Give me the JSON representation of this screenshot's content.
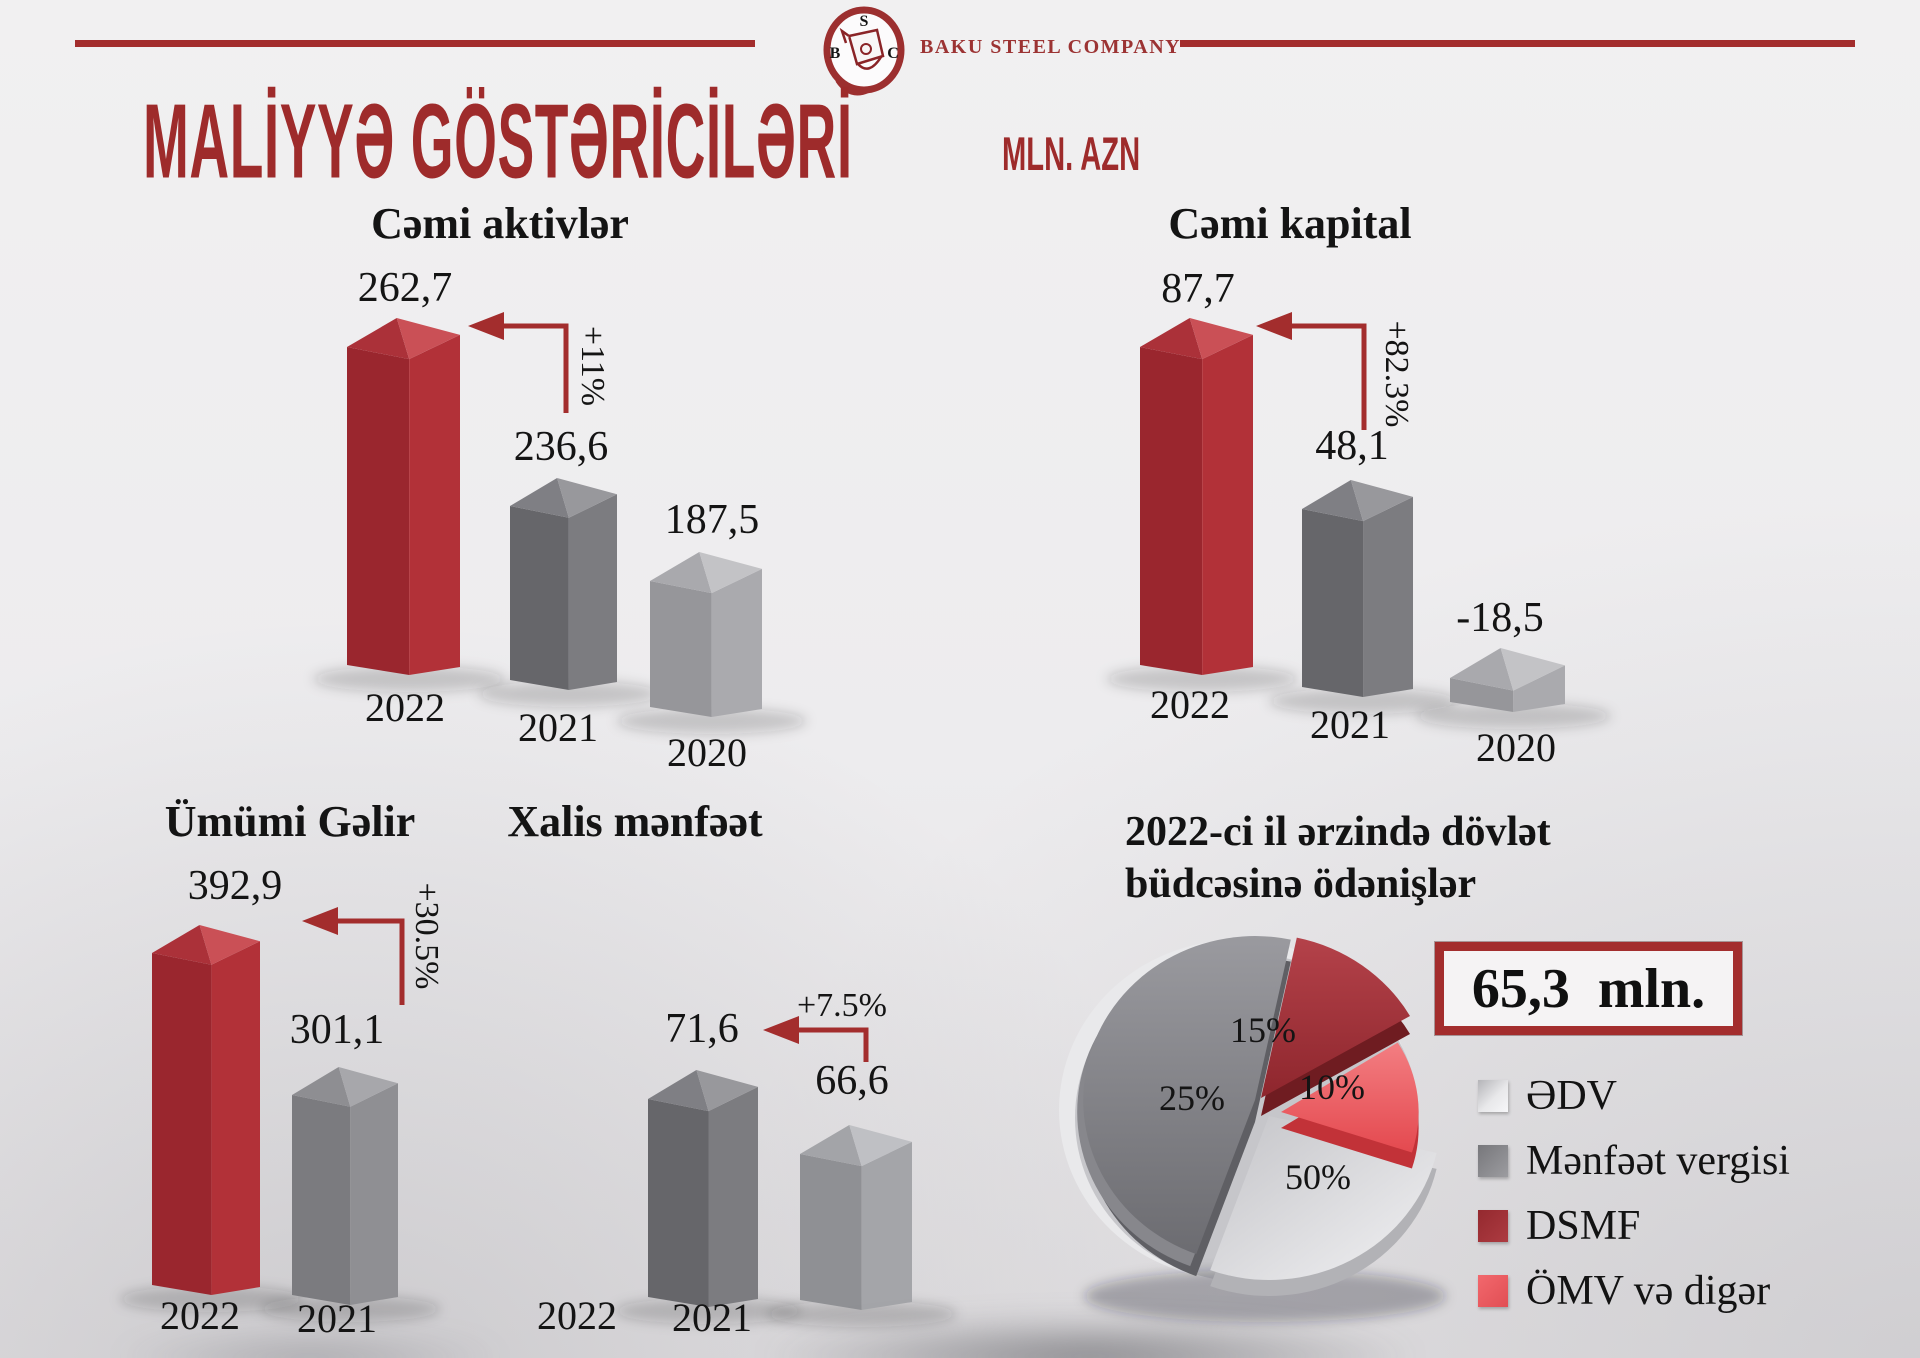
{
  "header": {
    "brand_name": "BAKU STEEL COMPANY",
    "logo_letters": {
      "top": "S",
      "left": "B",
      "right": "C"
    },
    "accent_color": "#a32d2d"
  },
  "title": {
    "text": "MALİYYƏ GÖSTƏRİCİLƏRİ",
    "unit_label": "MLN. AZN",
    "color": "#9e2b2b"
  },
  "palette": {
    "accent_red": "#a32d2d",
    "bar_red": {
      "face_l": "#9a262e",
      "face_r": "#b23138",
      "cap_l": "#ab3139",
      "cap_r": "#ca5056"
    },
    "bar_gray_dark": {
      "face_l": "#66666a",
      "face_r": "#7c7c80",
      "cap_l": "#7f7f84",
      "cap_r": "#98989c"
    },
    "bar_gray_mid": {
      "face_l": "#7b7b7f",
      "face_r": "#8f8f93",
      "cap_l": "#8e8e92",
      "cap_r": "#a7a7ab"
    },
    "bar_gray_light": {
      "face_l": "#96969a",
      "face_r": "#aaaaae",
      "cap_l": "#a9a9ad",
      "cap_r": "#c3c3c6"
    },
    "bar_gray_lighter": {
      "face_l": "#8f9094",
      "face_r": "#a4a5a9",
      "cap_l": "#a3a4a8",
      "cap_r": "#bfc0c4"
    },
    "pie": {
      "edv": [
        "#c6c6ca",
        "#f0f0f2",
        "#b2b2b6"
      ],
      "menfeet": [
        "#98989d",
        "#6d6d72",
        "#5f5f64"
      ],
      "dsmf": [
        "#b4424 9",
        "#8e262d",
        "#6f1c21"
      ],
      "omv": [
        "#f37e82",
        "#e4494f",
        "#c23238"
      ]
    }
  },
  "chart_data": [
    {
      "type": "bar",
      "title": "Cəmi aktivlər",
      "unit": "mln. AZN",
      "categories": [
        "2022",
        "2021",
        "2020"
      ],
      "values": [
        262.7,
        236.6,
        187.5
      ],
      "value_labels": [
        "262,7",
        "236,6",
        "187,5"
      ],
      "change_label": "+11%"
    },
    {
      "type": "bar",
      "title": "Cəmi kapital",
      "unit": "mln. AZN",
      "categories": [
        "2022",
        "2021",
        "2020"
      ],
      "values": [
        87.7,
        48.1,
        -18.5
      ],
      "value_labels": [
        "87,7",
        "48,1",
        "-18,5"
      ],
      "change_label": "+82.3%"
    },
    {
      "type": "bar",
      "title": "Ümümi Gəlir",
      "unit": "mln. AZN",
      "categories": [
        "2022",
        "2021"
      ],
      "values": [
        392.9,
        301.1
      ],
      "value_labels": [
        "392,9",
        "301,1"
      ],
      "change_label": "+30.5%"
    },
    {
      "type": "bar",
      "title": "Xalis mənfəət",
      "unit": "mln. AZN",
      "categories": [
        "2022",
        "2021"
      ],
      "values": [
        71.6,
        66.6
      ],
      "value_labels": [
        "71,6",
        "66,6"
      ],
      "change_label": "+7.5%"
    },
    {
      "type": "pie",
      "title_lines": [
        "2022-ci il ərzində dövlət",
        "büdcəsinə ödənişlər"
      ],
      "total_label": "65,3  mln.",
      "slices": [
        {
          "label": "ƏDV",
          "value": 50,
          "pct_label": "50%"
        },
        {
          "label": "Mənfəət vergisi",
          "value": 25,
          "pct_label": "25%"
        },
        {
          "label": "DSMF",
          "value": 15,
          "pct_label": "15%"
        },
        {
          "label": "ÖMV və digər",
          "value": 10,
          "pct_label": "10%"
        }
      ]
    }
  ]
}
